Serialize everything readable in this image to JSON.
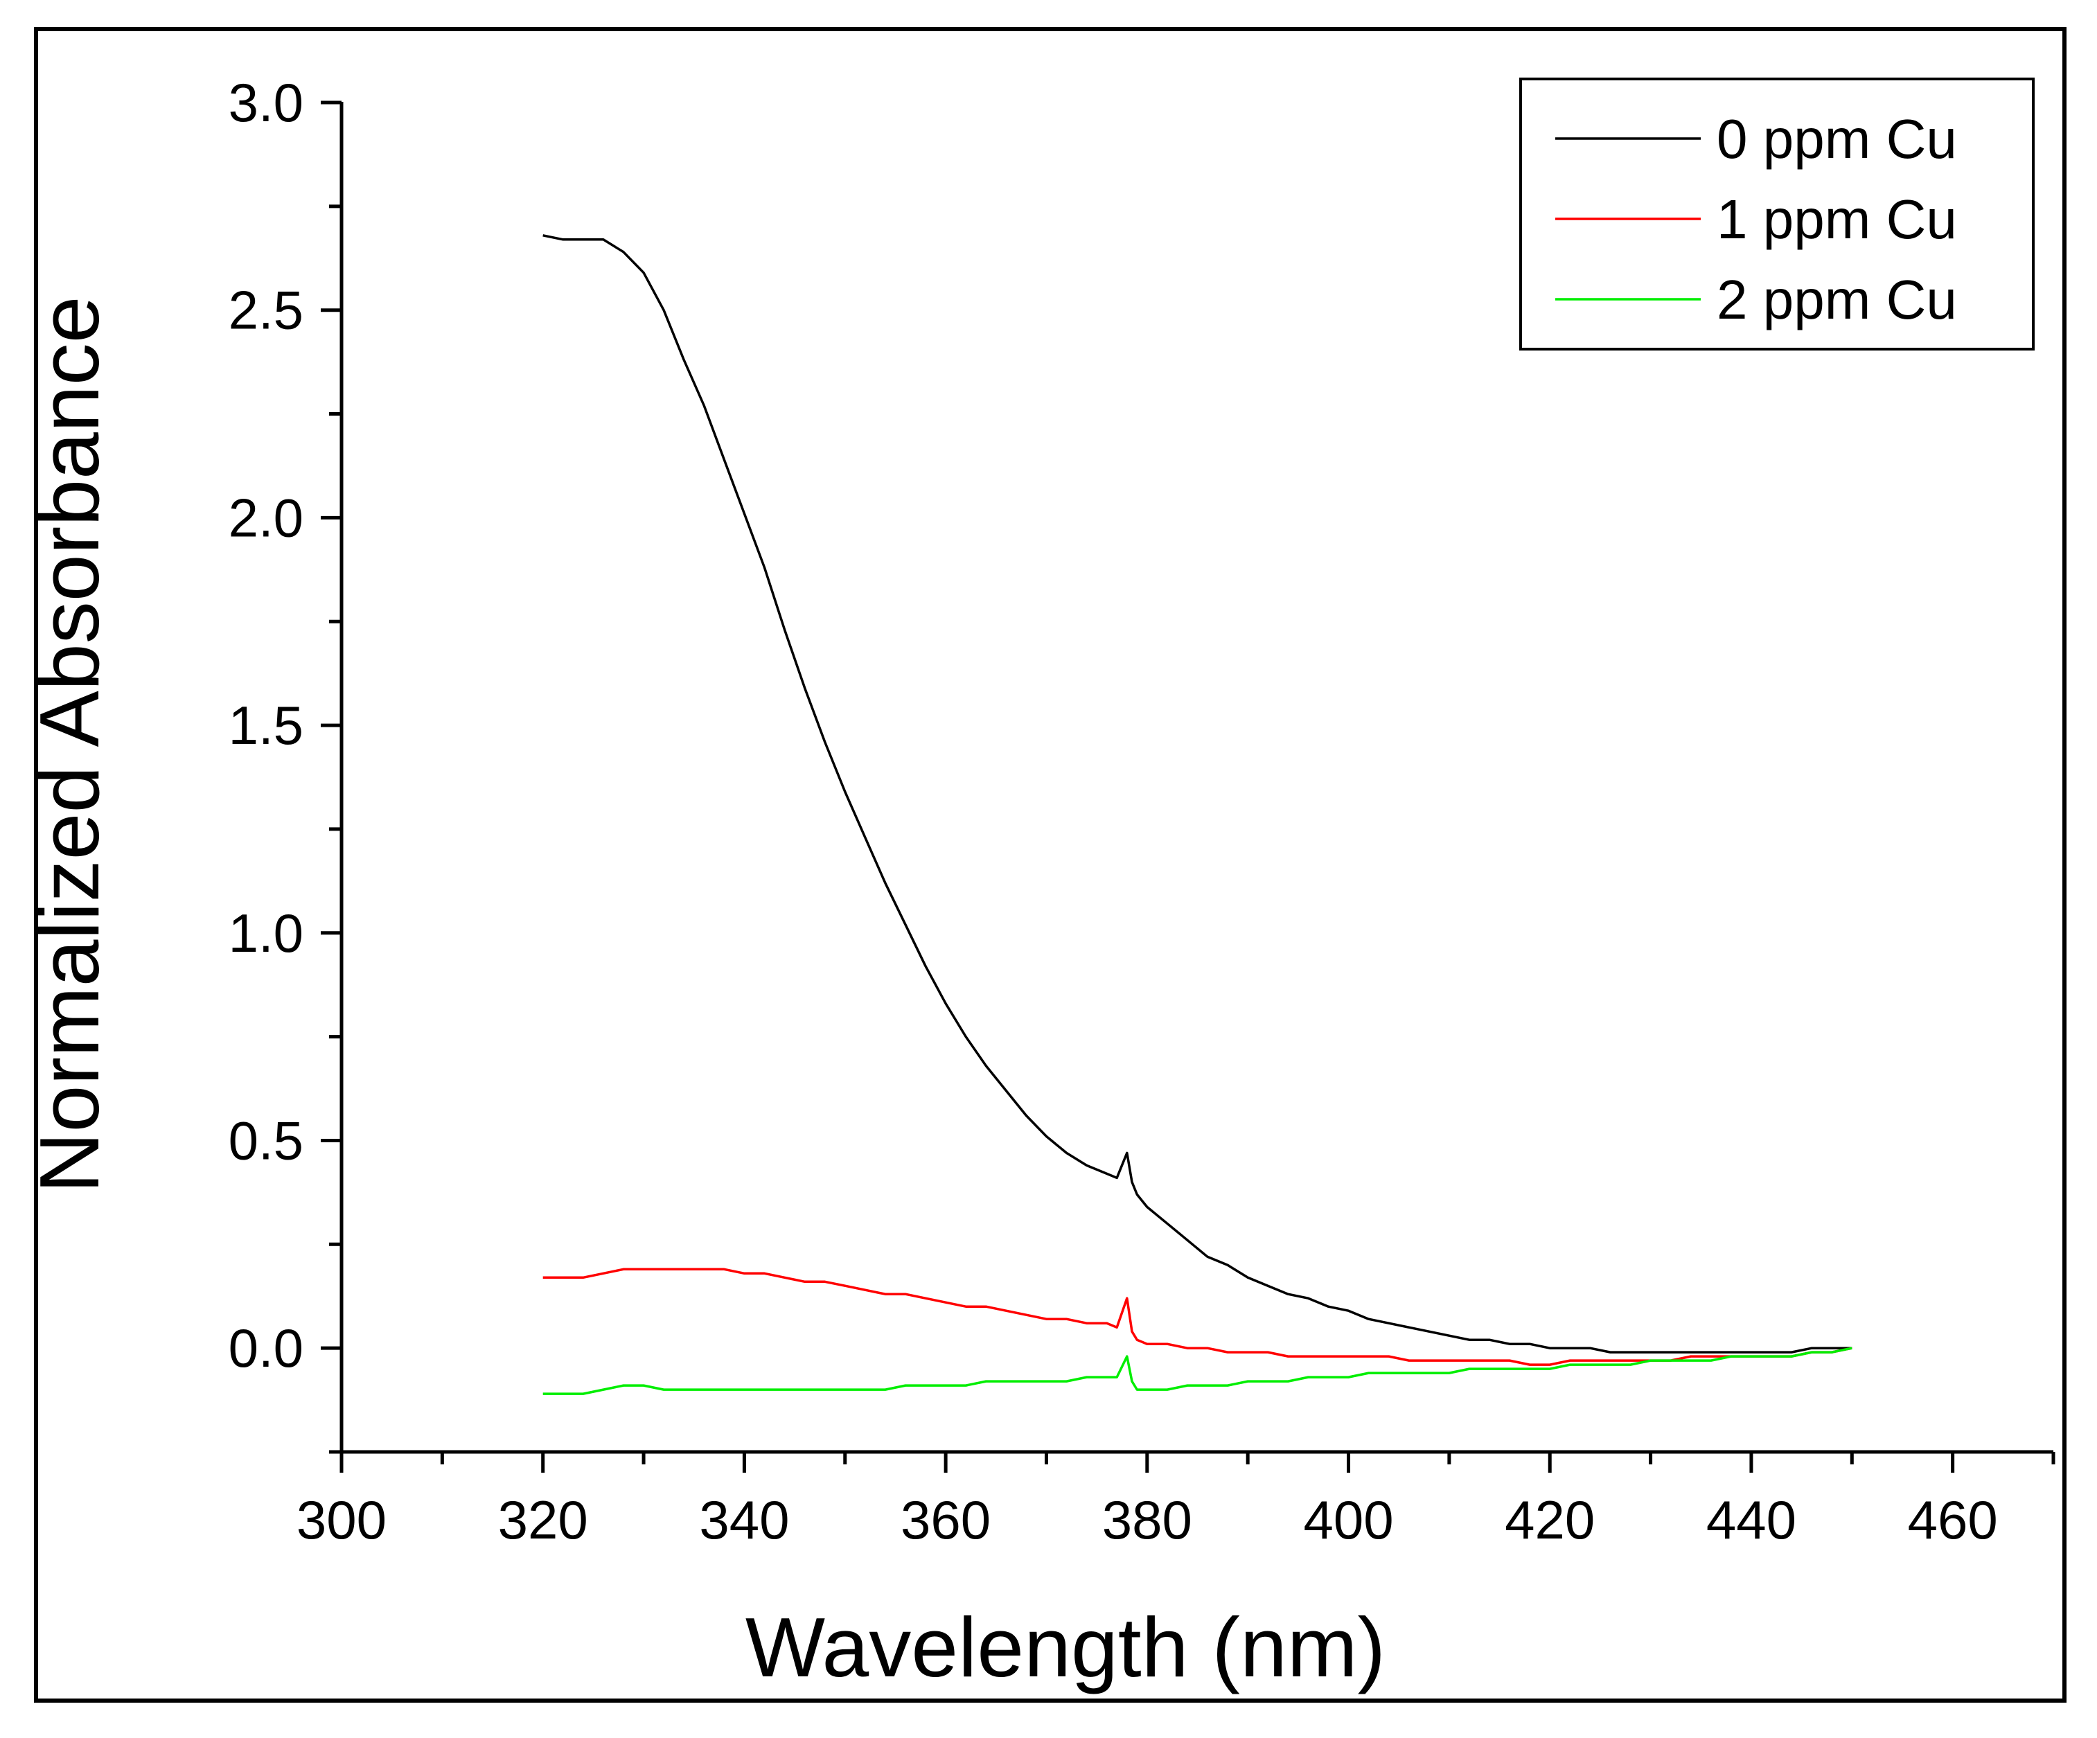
{
  "chart_data": {
    "type": "line",
    "title": "",
    "xlabel": "Wavelength (nm)",
    "ylabel": "Normalized Absorbance",
    "xlim": [
      300,
      470
    ],
    "ylim": [
      -0.25,
      3.0
    ],
    "x_major_ticks": [
      300,
      320,
      340,
      360,
      380,
      400,
      420,
      440,
      460
    ],
    "x_tick_labels": [
      "300",
      "320",
      "340",
      "360",
      "380",
      "400",
      "420",
      "440",
      "460"
    ],
    "y_major_ticks": [
      0.0,
      0.5,
      1.0,
      1.5,
      2.0,
      2.5,
      3.0
    ],
    "y_tick_labels": [
      "0.0",
      "0.5",
      "1.0",
      "1.5",
      "2.0",
      "2.5",
      "3.0"
    ],
    "grid": false,
    "legend_position": "top-right",
    "x": [
      320,
      322,
      324,
      326,
      328,
      330,
      332,
      334,
      336,
      338,
      340,
      342,
      344,
      346,
      348,
      350,
      352,
      354,
      356,
      358,
      360,
      362,
      364,
      366,
      368,
      370,
      372,
      374,
      376,
      377,
      378,
      378.5,
      379,
      380,
      382,
      384,
      386,
      388,
      390,
      392,
      394,
      396,
      398,
      400,
      402,
      404,
      406,
      408,
      410,
      412,
      414,
      416,
      418,
      420,
      422,
      424,
      426,
      428,
      430,
      432,
      434,
      436,
      438,
      440,
      442,
      444,
      446,
      448,
      450
    ],
    "series": [
      {
        "name": "0 ppm Cu",
        "color": "#000000",
        "values": [
          2.68,
          2.67,
          2.67,
          2.67,
          2.64,
          2.59,
          2.5,
          2.38,
          2.27,
          2.14,
          2.01,
          1.88,
          1.73,
          1.59,
          1.46,
          1.34,
          1.23,
          1.12,
          1.02,
          0.92,
          0.83,
          0.75,
          0.68,
          0.62,
          0.56,
          0.51,
          0.47,
          0.44,
          0.42,
          0.41,
          0.47,
          0.4,
          0.37,
          0.34,
          0.3,
          0.26,
          0.22,
          0.2,
          0.17,
          0.15,
          0.13,
          0.12,
          0.1,
          0.09,
          0.07,
          0.06,
          0.05,
          0.04,
          0.03,
          0.02,
          0.02,
          0.01,
          0.01,
          0.0,
          0.0,
          0.0,
          -0.01,
          -0.01,
          -0.01,
          -0.01,
          -0.01,
          -0.01,
          -0.01,
          -0.01,
          -0.01,
          -0.01,
          0.0,
          0.0,
          0.0
        ]
      },
      {
        "name": "1 ppm Cu",
        "color": "#ff0000",
        "values": [
          0.17,
          0.17,
          0.17,
          0.18,
          0.19,
          0.19,
          0.19,
          0.19,
          0.19,
          0.19,
          0.18,
          0.18,
          0.17,
          0.16,
          0.16,
          0.15,
          0.14,
          0.13,
          0.13,
          0.12,
          0.11,
          0.1,
          0.1,
          0.09,
          0.08,
          0.07,
          0.07,
          0.06,
          0.06,
          0.05,
          0.12,
          0.04,
          0.02,
          0.01,
          0.01,
          0.0,
          0.0,
          -0.01,
          -0.01,
          -0.01,
          -0.02,
          -0.02,
          -0.02,
          -0.02,
          -0.02,
          -0.02,
          -0.03,
          -0.03,
          -0.03,
          -0.03,
          -0.03,
          -0.03,
          -0.04,
          -0.04,
          -0.03,
          -0.03,
          -0.03,
          -0.03,
          -0.03,
          -0.03,
          -0.02,
          -0.02,
          -0.02,
          -0.02,
          -0.02,
          -0.02,
          -0.01,
          -0.01,
          0.0
        ]
      },
      {
        "name": "2 ppm Cu",
        "color": "#00ee00",
        "values": [
          -0.11,
          -0.11,
          -0.11,
          -0.1,
          -0.09,
          -0.09,
          -0.1,
          -0.1,
          -0.1,
          -0.1,
          -0.1,
          -0.1,
          -0.1,
          -0.1,
          -0.1,
          -0.1,
          -0.1,
          -0.1,
          -0.09,
          -0.09,
          -0.09,
          -0.09,
          -0.08,
          -0.08,
          -0.08,
          -0.08,
          -0.08,
          -0.07,
          -0.07,
          -0.07,
          -0.02,
          -0.08,
          -0.1,
          -0.1,
          -0.1,
          -0.09,
          -0.09,
          -0.09,
          -0.08,
          -0.08,
          -0.08,
          -0.07,
          -0.07,
          -0.07,
          -0.06,
          -0.06,
          -0.06,
          -0.06,
          -0.06,
          -0.05,
          -0.05,
          -0.05,
          -0.05,
          -0.05,
          -0.04,
          -0.04,
          -0.04,
          -0.04,
          -0.03,
          -0.03,
          -0.03,
          -0.03,
          -0.02,
          -0.02,
          -0.02,
          -0.02,
          -0.01,
          -0.01,
          0.0
        ]
      }
    ]
  }
}
